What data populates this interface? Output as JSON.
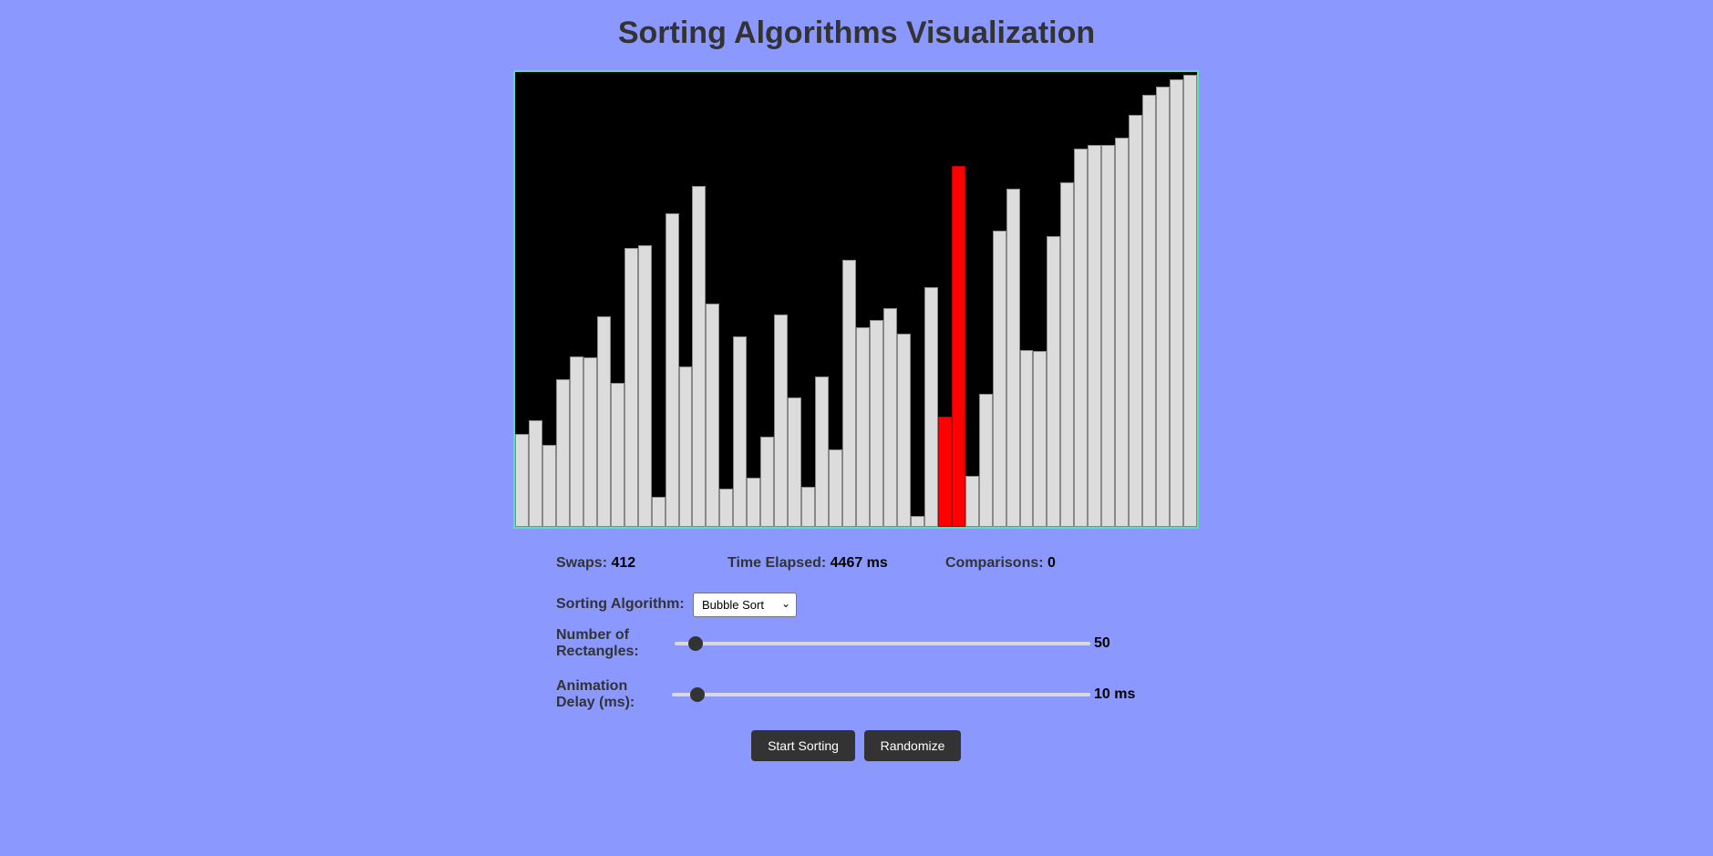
{
  "page": {
    "title": "Sorting Algorithms Visualization"
  },
  "stats": {
    "swaps_label": "Swaps:",
    "swaps_value": "412",
    "time_label": "Time Elapsed:",
    "time_value": "4467 ms",
    "comparisons_label": "Comparisons:",
    "comparisons_value": "0"
  },
  "controls": {
    "algorithm_label": "Sorting Algorithm:",
    "algorithm_selected": "Bubble Sort",
    "rect_count_label_line1": "Number of",
    "rect_count_label_line2": "Rectangles:",
    "rect_count_value": "50",
    "rect_count_fraction": 0.05,
    "delay_label_line1": "Animation",
    "delay_label_line2": "Delay (ms):",
    "delay_value": "10 ms",
    "delay_fraction": 0.06,
    "start_button": "Start Sorting",
    "randomize_button": "Randomize"
  },
  "colors": {
    "background": "#8b99fe",
    "bar": "#dcdcdc",
    "bar_active": "#ff0000",
    "canvas": "#000000",
    "canvas_border": "#5de0b0"
  },
  "chart_data": {
    "type": "bar",
    "max_value": 100,
    "values": [
      20.5,
      23.5,
      18,
      32.5,
      37.5,
      37.3,
      46.2,
      31.6,
      61.4,
      61.9,
      6.7,
      69,
      35.3,
      74.9,
      49.2,
      8.4,
      41.8,
      10.8,
      19.9,
      46.7,
      28.5,
      8.8,
      33,
      17,
      58.8,
      43.8,
      45.4,
      48,
      42.5,
      2.5,
      52.7,
      24.2,
      79.3,
      11.2,
      29.3,
      65.2,
      74.4,
      38.9,
      38.6,
      64,
      75.8,
      83.2,
      84,
      84,
      85.6,
      90.5,
      95,
      96.8,
      98.5,
      99.5
    ],
    "active_indices": [
      31,
      32
    ]
  }
}
